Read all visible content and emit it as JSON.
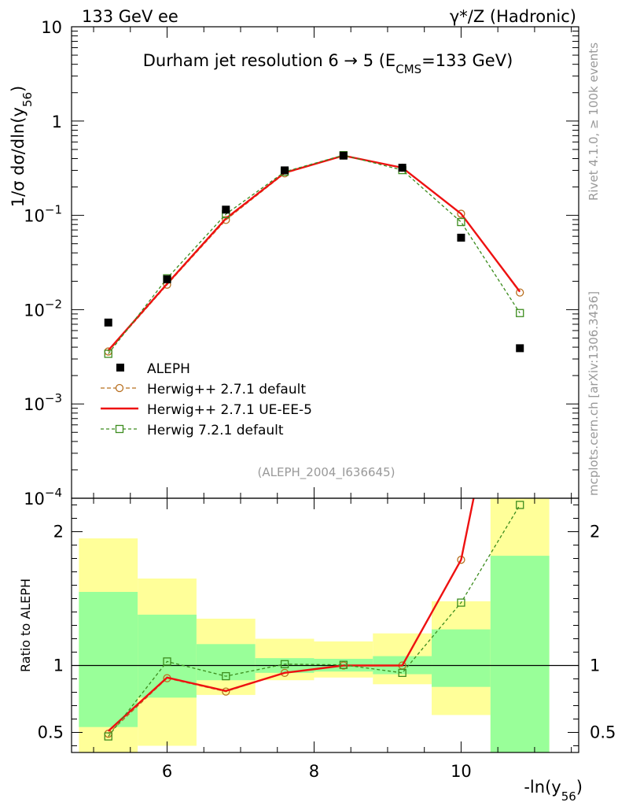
{
  "header": {
    "left": "133 GeV ee",
    "right": "γ*/Z (Hadronic)"
  },
  "side_labels": {
    "rivet": "Rivet 4.1.0, ≥ 100k events",
    "mcplots": "mcplots.cern.ch [arXiv:1306.3436]"
  },
  "chart_data": {
    "type": "line",
    "title": "Durham jet resolution 6 → 5 (E_CMS=133 GeV)",
    "title_parts": {
      "main": "Durham jet resolution 6",
      "arrow": "→",
      "mid": " 5 (E",
      "sub": "CMS",
      "end": "=133 GeV)"
    },
    "analysis_tag": "(ALEPH_2004_I636645)",
    "xlabel": {
      "main": "-ln(y",
      "sub": "56",
      "end": ")"
    },
    "ylabel": {
      "main": "1/σ  dσ/dln(y",
      "sub": "56",
      "end": ")"
    },
    "ratio_ylabel": "Ratio to ALEPH",
    "xlim": [
      4.7,
      11.6
    ],
    "ylim_log": [
      0.0001,
      10
    ],
    "ratio_ylim": [
      0.35,
      2.25
    ],
    "x_ticks": [
      6,
      8,
      10
    ],
    "x_tick_labels": [
      "6",
      "8",
      "10"
    ],
    "y_ticks": [
      {
        "exp": 1,
        "text": "10"
      },
      {
        "exp": 0,
        "text": "1"
      },
      {
        "exp": -1,
        "base": "10",
        "sup": "−1"
      },
      {
        "exp": -2,
        "base": "10",
        "sup": "−2"
      },
      {
        "exp": -3,
        "base": "10",
        "sup": "−3"
      },
      {
        "exp": -4,
        "base": "10",
        "sup": "−4"
      }
    ],
    "ratio_ticks": [
      0.5,
      1,
      2
    ],
    "ratio_tick_labels": [
      "0.5",
      "1",
      "2"
    ],
    "bin_edges": [
      4.8,
      5.6,
      6.4,
      7.2,
      8.0,
      8.8,
      9.6,
      10.4,
      11.2
    ],
    "x": [
      5.2,
      6.0,
      6.8,
      7.6,
      8.4,
      9.2,
      10.0,
      10.8
    ],
    "data": {
      "name": "ALEPH",
      "values": [
        0.0073,
        0.021,
        0.115,
        0.3,
        0.43,
        0.32,
        0.058,
        0.0039
      ]
    },
    "series": [
      {
        "name": "Herwig++ 2.7.1 default",
        "color": "#b86f1f",
        "marker": "circle",
        "dash": "5,3",
        "values": [
          0.0036,
          0.0184,
          0.0895,
          0.279,
          0.432,
          0.32,
          0.104,
          0.0152
        ],
        "ratio": [
          0.49,
          0.905,
          0.805,
          0.945,
          1.0,
          1.0,
          1.79,
          3.9
        ]
      },
      {
        "name": "Herwig++ 2.7.1 UE-EE-5",
        "color": "#ee1111",
        "marker": "none",
        "dash": "",
        "values": [
          0.0037,
          0.0188,
          0.0925,
          0.283,
          0.43,
          0.32,
          0.104,
          0.0155
        ],
        "ratio": [
          0.51,
          0.91,
          0.81,
          0.945,
          1.0,
          1.0,
          1.79,
          3.95
        ]
      },
      {
        "name": "Herwig 7.2.1 default",
        "color": "#3c8c1e",
        "marker": "square",
        "dash": "4,3",
        "values": [
          0.0034,
          0.0215,
          0.103,
          0.29,
          0.435,
          0.302,
          0.085,
          0.0092
        ],
        "ratio": [
          0.47,
          1.03,
          0.92,
          1.01,
          1.005,
          0.945,
          1.47,
          2.2
        ]
      }
    ],
    "ratio_bands": {
      "stat_lo": [
        0.54,
        0.76,
        0.89,
        0.945,
        0.955,
        0.935,
        0.84,
        0.2
      ],
      "stat_hi": [
        1.55,
        1.38,
        1.16,
        1.055,
        1.05,
        1.07,
        1.27,
        1.82
      ],
      "tot_lo": [
        0.2,
        0.4,
        0.78,
        0.89,
        0.91,
        0.86,
        0.63,
        0.2
      ],
      "tot_hi": [
        1.95,
        1.65,
        1.35,
        1.2,
        1.18,
        1.24,
        1.48,
        2.5
      ]
    },
    "colors": {
      "stat_band": "#99ff99",
      "total_band": "#ffff99",
      "data_marker": "#000000"
    }
  }
}
